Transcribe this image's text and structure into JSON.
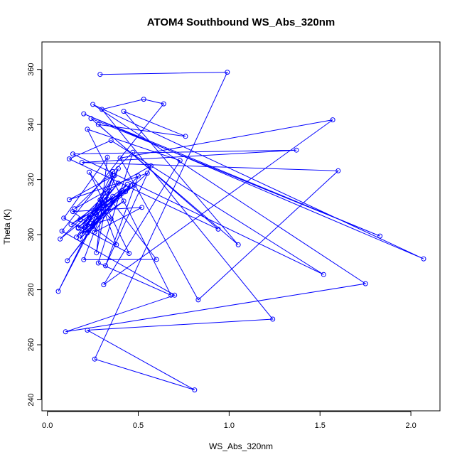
{
  "chart_data": {
    "type": "line",
    "title": "ATOM4 Southbound WS_Abs_320nm",
    "xlabel": "WS_Abs_320nm",
    "ylabel": "Theta (K)",
    "xlim": [
      -0.03,
      2.16
    ],
    "ylim": [
      236,
      370
    ],
    "xticks": [
      0.0,
      0.5,
      1.0,
      1.5,
      2.0
    ],
    "xtick_labels": [
      "0.0",
      "0.5",
      "1.0",
      "1.5",
      "2.0"
    ],
    "yticks": [
      240,
      260,
      280,
      300,
      320,
      340,
      360
    ],
    "ytick_labels": [
      "240",
      "260",
      "280",
      "300",
      "320",
      "340",
      "360"
    ],
    "grid": false,
    "legend": "none",
    "marker": "open-circle",
    "series": [
      {
        "color": "#0000ff",
        "x": [
          0.29,
          0.99,
          0.26,
          0.81,
          0.22,
          1.24,
          0.3,
          0.53,
          0.64,
          0.08,
          0.7,
          0.1,
          1.75,
          0.25,
          2.07,
          0.2,
          1.83,
          0.24,
          1.05,
          0.42,
          0.76,
          0.28,
          0.94,
          0.12,
          0.35,
          1.52,
          0.14,
          1.37,
          0.19,
          1.6,
          0.83,
          0.4,
          1.57,
          0.31,
          0.73,
          0.22,
          0.68,
          0.28,
          0.47,
          0.15,
          0.57,
          0.32,
          0.5,
          0.18,
          0.36,
          0.27,
          0.33,
          0.09,
          0.45,
          0.23,
          0.6,
          0.2,
          0.39,
          0.16,
          0.55,
          0.12,
          0.37,
          0.21,
          0.46,
          0.18,
          0.34,
          0.25,
          0.44,
          0.07,
          0.29,
          0.38,
          0.14,
          0.52,
          0.26,
          0.41,
          0.19,
          0.31,
          0.06,
          0.27,
          0.43,
          0.17,
          0.36,
          0.23,
          0.48,
          0.13,
          0.3,
          0.22,
          0.4,
          0.11,
          0.33,
          0.24,
          0.42,
          0.19,
          0.28,
          0.35,
          0.21,
          0.32,
          0.26,
          0.39,
          0.17
        ],
        "y": [
          358.2,
          359.0,
          254.8,
          243.6,
          265.3,
          269.3,
          345.5,
          349.2,
          347.5,
          301.3,
          278.0,
          264.7,
          282.2,
          347.3,
          291.2,
          343.9,
          299.5,
          342.2,
          296.3,
          344.8,
          335.7,
          340.0,
          302.0,
          327.5,
          334.2,
          285.5,
          329.3,
          330.7,
          326.2,
          323.2,
          276.3,
          327.8,
          341.7,
          281.8,
          326.9,
          338.3,
          278.0,
          289.7,
          329.9,
          309.4,
          325.0,
          288.7,
          321.3,
          298.4,
          322.9,
          293.4,
          328.1,
          306.0,
          293.2,
          322.7,
          291.0,
          290.9,
          324.0,
          299.1,
          322.3,
          312.7,
          321.5,
          301.8,
          317.8,
          305.5,
          315.9,
          303.0,
          318.3,
          298.4,
          312.6,
          296.3,
          308.4,
          309.9,
          300.9,
          316.0,
          302.1,
          311.3,
          279.4,
          307.4,
          315.6,
          302.6,
          313.9,
          306.4,
          318.0,
          303.7,
          311.8,
          300.6,
          314.8,
          290.5,
          309.5,
          304.1,
          312.2,
          300.2,
          310.4,
          305.7,
          303.2,
          313.6,
          307.9,
          318.7,
          302.3
        ]
      }
    ]
  }
}
